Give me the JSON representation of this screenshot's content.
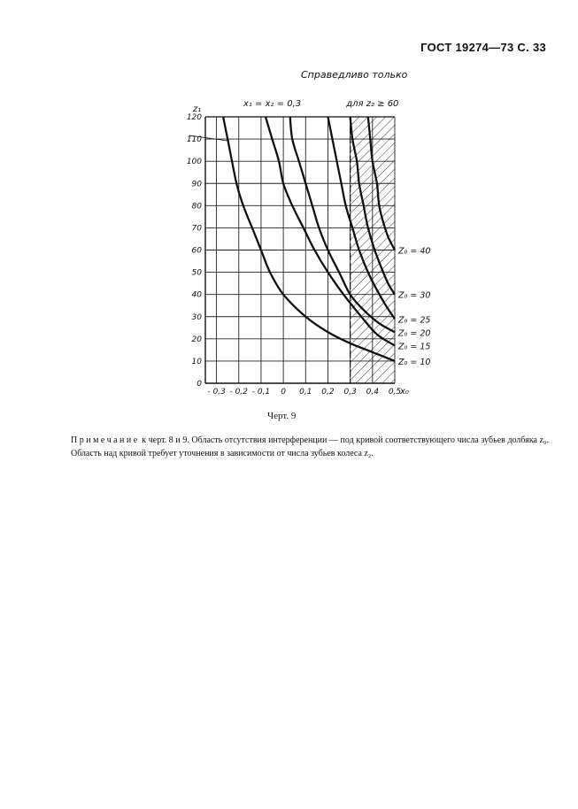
{
  "page": {
    "header": "ГОСТ 19274—73 С. 33",
    "subhead": "Справедливо только",
    "caption": "Черт. 9",
    "note_lead": "Примечание",
    "note_text": " к черт. 8 и 9. Область отсутствия интерференции — под кривой соответствующего числа зубьев долбяка z₀. Область над кривой требует уточнения в зависимости от числа зубьев колеса z₂."
  },
  "chart_data": {
    "type": "line",
    "title": "x₁ = x₂ = 0,3",
    "annotation": "для z₂ ≥ 60",
    "ylabel": "z₁",
    "xlabel": "x₀",
    "xlim": [
      -0.35,
      0.5
    ],
    "ylim": [
      0,
      120
    ],
    "x_ticks": [
      "- 0,3",
      "- 0,2",
      "- 0,1",
      "0",
      "0,1",
      "0,2",
      "0,3",
      "0,4",
      "0,5"
    ],
    "x_tick_values": [
      -0.3,
      -0.2,
      -0.1,
      0,
      0.1,
      0.2,
      0.3,
      0.4,
      0.5
    ],
    "y_ticks": [
      "0",
      "10",
      "20",
      "30",
      "40",
      "50",
      "60",
      "70",
      "80",
      "90",
      "100",
      "110",
      "120"
    ],
    "y_tick_values": [
      0,
      10,
      20,
      30,
      40,
      50,
      60,
      70,
      80,
      90,
      100,
      110,
      120
    ],
    "grid": true,
    "hatched_region": [
      0.3,
      0.5
    ],
    "series": [
      {
        "name": "Z₀ = 10",
        "label_y": 10,
        "points": [
          [
            -0.27,
            120
          ],
          [
            -0.25,
            110
          ],
          [
            -0.21,
            90
          ],
          [
            -0.18,
            80
          ],
          [
            -0.14,
            70
          ],
          [
            -0.1,
            60
          ],
          [
            -0.06,
            50
          ],
          [
            0.0,
            40
          ],
          [
            0.1,
            30
          ],
          [
            0.2,
            23
          ],
          [
            0.3,
            18
          ],
          [
            0.4,
            14
          ],
          [
            0.5,
            10
          ]
        ]
      },
      {
        "name": "Z₀ = 15",
        "label_y": 17,
        "points": [
          [
            -0.08,
            120
          ],
          [
            -0.05,
            110
          ],
          [
            -0.02,
            100
          ],
          [
            0.0,
            90
          ],
          [
            0.04,
            80
          ],
          [
            0.09,
            70
          ],
          [
            0.14,
            60
          ],
          [
            0.2,
            50
          ],
          [
            0.27,
            40
          ],
          [
            0.35,
            30
          ],
          [
            0.42,
            22
          ],
          [
            0.5,
            17
          ]
        ]
      },
      {
        "name": "Z₀ = 20",
        "label_y": 23,
        "points": [
          [
            0.03,
            120
          ],
          [
            0.04,
            110
          ],
          [
            0.07,
            100
          ],
          [
            0.1,
            90
          ],
          [
            0.13,
            80
          ],
          [
            0.16,
            70
          ],
          [
            0.2,
            60
          ],
          [
            0.25,
            50
          ],
          [
            0.3,
            40
          ],
          [
            0.36,
            33
          ],
          [
            0.43,
            27
          ],
          [
            0.5,
            23
          ]
        ]
      },
      {
        "name": "Z₀ = 25",
        "label_y": 29,
        "points": [
          [
            0.2,
            120
          ],
          [
            0.22,
            110
          ],
          [
            0.24,
            100
          ],
          [
            0.26,
            90
          ],
          [
            0.28,
            80
          ],
          [
            0.31,
            70
          ],
          [
            0.34,
            60
          ],
          [
            0.38,
            50
          ],
          [
            0.42,
            42
          ],
          [
            0.46,
            35
          ],
          [
            0.5,
            29
          ]
        ]
      },
      {
        "name": "Z₀ = 30",
        "label_y": 40,
        "points": [
          [
            0.3,
            120
          ],
          [
            0.31,
            110
          ],
          [
            0.33,
            100
          ],
          [
            0.34,
            90
          ],
          [
            0.36,
            80
          ],
          [
            0.38,
            70
          ],
          [
            0.41,
            60
          ],
          [
            0.44,
            52
          ],
          [
            0.47,
            45
          ],
          [
            0.5,
            40
          ]
        ]
      },
      {
        "name": "Z₀ = 40",
        "label_y": 60,
        "points": [
          [
            0.38,
            120
          ],
          [
            0.39,
            110
          ],
          [
            0.4,
            100
          ],
          [
            0.42,
            90
          ],
          [
            0.43,
            80
          ],
          [
            0.45,
            72
          ],
          [
            0.47,
            66
          ],
          [
            0.5,
            60
          ]
        ]
      }
    ],
    "leader_label_value": 110
  }
}
